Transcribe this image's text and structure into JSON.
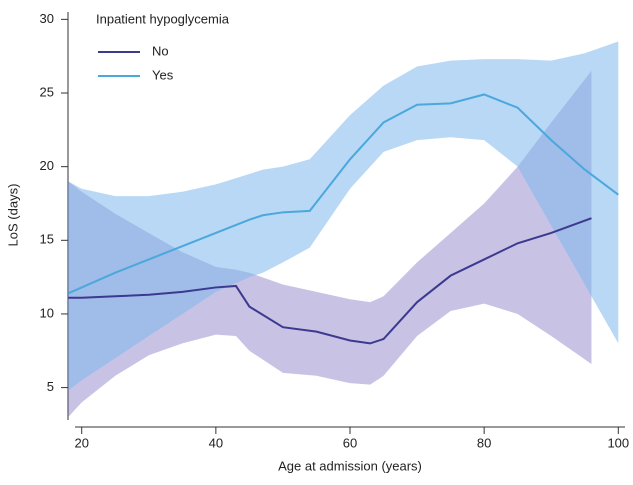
{
  "chart_data": {
    "type": "line",
    "xlabel": "Age at admission (years)",
    "ylabel": "LoS (days)",
    "legend_title": "Inpatient hypoglycemia",
    "legend": "upper left",
    "xlim": [
      19,
      101
    ],
    "ylim": [
      2.8,
      30.5
    ],
    "xticks": [
      20,
      40,
      60,
      80,
      100
    ],
    "yticks": [
      5,
      10,
      15,
      20,
      25,
      30
    ],
    "series": [
      {
        "name": "No",
        "color": "#3b3a8f",
        "band_color": "#9a8fd0",
        "x": [
          18,
          20,
          25,
          30,
          35,
          40,
          43,
          45,
          50,
          55,
          60,
          63,
          65,
          70,
          75,
          80,
          85,
          90,
          96
        ],
        "values": [
          11.1,
          11.1,
          11.2,
          11.3,
          11.5,
          11.8,
          11.9,
          10.5,
          9.1,
          8.8,
          8.2,
          8.0,
          8.3,
          10.8,
          12.6,
          13.7,
          14.8,
          15.5,
          16.5
        ],
        "lower": [
          3.0,
          4.0,
          5.8,
          7.2,
          8.0,
          8.6,
          8.5,
          7.5,
          6.0,
          5.8,
          5.3,
          5.2,
          5.8,
          8.5,
          10.2,
          10.7,
          10.0,
          8.5,
          6.6
        ],
        "upper": [
          19.0,
          18.3,
          16.8,
          15.5,
          14.2,
          13.2,
          13.0,
          12.8,
          12.0,
          11.5,
          11.0,
          10.8,
          11.2,
          13.5,
          15.5,
          17.5,
          20.0,
          23.0,
          26.5
        ]
      },
      {
        "name": "Yes",
        "color": "#4aa8dc",
        "band_color": "#7fb8ec",
        "x": [
          18,
          20,
          25,
          30,
          35,
          40,
          45,
          47,
          50,
          54,
          60,
          65,
          70,
          75,
          80,
          85,
          90,
          95,
          100
        ],
        "values": [
          11.4,
          11.8,
          12.8,
          13.7,
          14.6,
          15.5,
          16.4,
          16.7,
          16.9,
          17.0,
          20.5,
          23.0,
          24.2,
          24.3,
          24.9,
          24.0,
          21.8,
          19.8,
          18.1
        ],
        "lower": [
          4.8,
          5.5,
          7.0,
          8.5,
          10.0,
          11.5,
          12.5,
          12.8,
          13.5,
          14.5,
          18.5,
          21.0,
          21.8,
          22.0,
          21.8,
          20.0,
          16.0,
          12.0,
          8.0
        ],
        "upper": [
          19.0,
          18.5,
          18.0,
          18.0,
          18.3,
          18.8,
          19.5,
          19.8,
          20.0,
          20.5,
          23.5,
          25.5,
          26.8,
          27.2,
          27.3,
          27.3,
          27.2,
          27.7,
          28.5
        ]
      }
    ]
  }
}
